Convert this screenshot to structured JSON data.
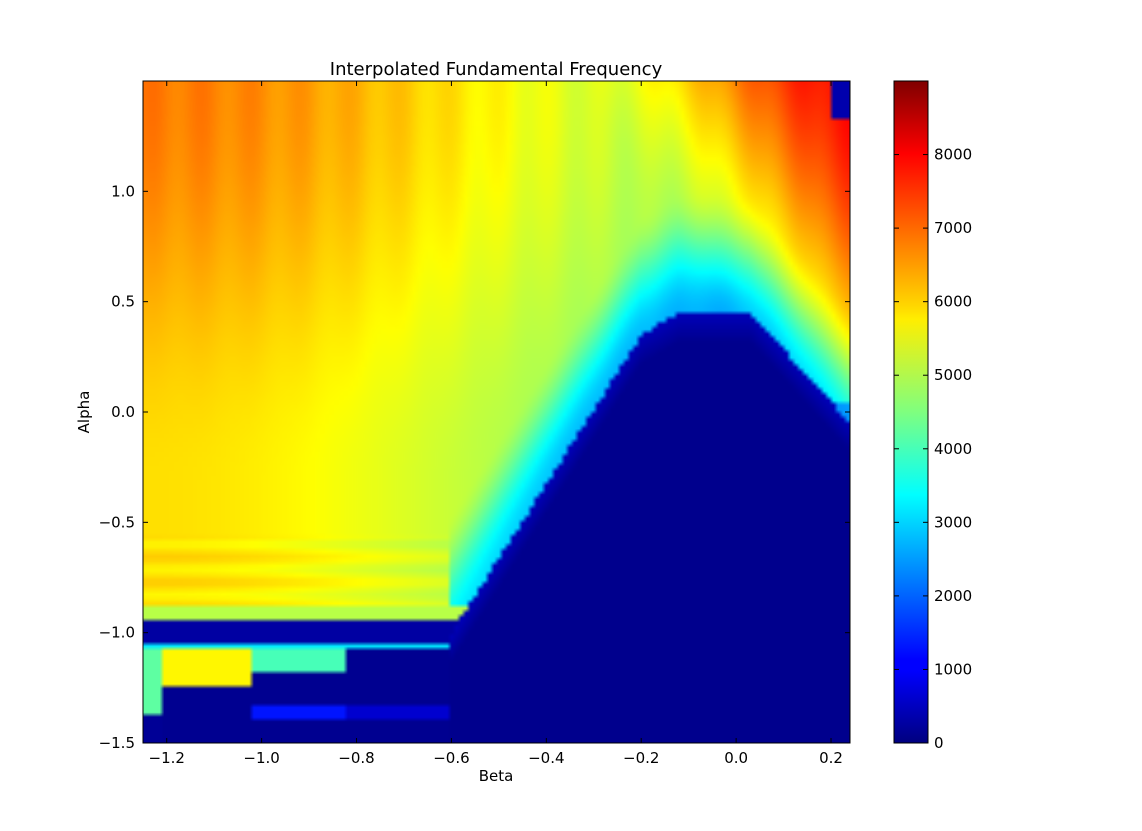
{
  "chart_data": {
    "type": "heatmap",
    "title": "Interpolated Fundamental Frequency",
    "xlabel": "Beta",
    "ylabel": "Alpha",
    "xlim": [
      -1.25,
      0.24
    ],
    "ylim": [
      -1.5,
      1.5
    ],
    "x_ticks": [
      {
        "value": -1.2,
        "label": "−1.2"
      },
      {
        "value": -1.0,
        "label": "−1.0"
      },
      {
        "value": -0.8,
        "label": "−0.8"
      },
      {
        "value": -0.6,
        "label": "−0.6"
      },
      {
        "value": -0.4,
        "label": "−0.4"
      },
      {
        "value": -0.2,
        "label": "−0.2"
      },
      {
        "value": 0.0,
        "label": "0.0"
      },
      {
        "value": 0.2,
        "label": "0.2"
      }
    ],
    "y_ticks": [
      {
        "value": -1.5,
        "label": "−1.5"
      },
      {
        "value": -1.0,
        "label": "−1.0"
      },
      {
        "value": -0.5,
        "label": "−0.5"
      },
      {
        "value": 0.0,
        "label": "0.0"
      },
      {
        "value": 0.5,
        "label": "0.5"
      },
      {
        "value": 1.0,
        "label": "1.0"
      }
    ],
    "colorbar": {
      "colormap": "jet",
      "range": [
        0,
        9000
      ],
      "ticks": [
        {
          "value": 0,
          "label": "0"
        },
        {
          "value": 1000,
          "label": "1000"
        },
        {
          "value": 2000,
          "label": "2000"
        },
        {
          "value": 3000,
          "label": "3000"
        },
        {
          "value": 4000,
          "label": "4000"
        },
        {
          "value": 5000,
          "label": "5000"
        },
        {
          "value": 6000,
          "label": "6000"
        },
        {
          "value": 7000,
          "label": "7000"
        },
        {
          "value": 8000,
          "label": "8000"
        }
      ]
    },
    "grid": false,
    "regions": {
      "top_left_value": 6300,
      "top_center_value": 5600,
      "left_value": 5700,
      "diagonal_valley_value": 0,
      "top_right_value": 7800,
      "boundary_line": [
        [
          -0.6,
          -1.0
        ],
        [
          -0.2,
          0.35
        ],
        [
          -0.12,
          0.45
        ],
        [
          0.03,
          0.45
        ],
        [
          0.24,
          -0.05
        ]
      ],
      "bands": [
        {
          "alpha": [
            -0.95,
            -0.88
          ],
          "beta": [
            -1.25,
            -0.6
          ],
          "value": 5400
        },
        {
          "alpha": [
            -1.05,
            -0.95
          ],
          "beta": [
            -1.25,
            -0.6
          ],
          "value": 300
        },
        {
          "alpha": [
            -1.25,
            -1.08
          ],
          "beta": [
            -1.25,
            -1.02
          ],
          "value": 5700
        },
        {
          "alpha": [
            -1.18,
            -1.08
          ],
          "beta": [
            -1.02,
            -0.82
          ],
          "value": 4000
        },
        {
          "alpha": [
            -1.4,
            -1.32
          ],
          "beta": [
            -1.02,
            -0.82
          ],
          "value": 1200
        }
      ]
    }
  }
}
